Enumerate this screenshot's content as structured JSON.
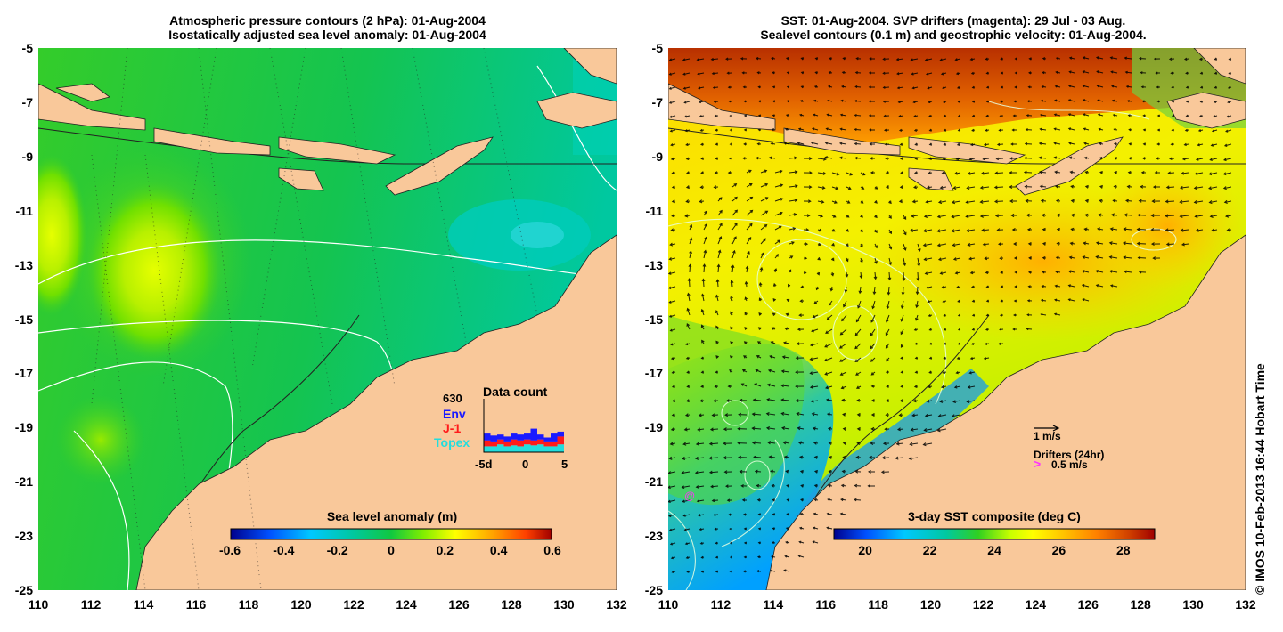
{
  "left": {
    "title1": "Atmospheric pressure contours (2 hPa): 01-Aug-2004",
    "title2": "Isostatically adjusted sea level anomaly: 01-Aug-2004",
    "y_ticks": [
      "-5",
      "-7",
      "-9",
      "-11",
      "-13",
      "-15",
      "-17",
      "-19",
      "-21",
      "-23",
      "-25"
    ],
    "x_ticks": [
      "110",
      "112",
      "114",
      "116",
      "118",
      "120",
      "122",
      "124",
      "126",
      "128",
      "130",
      "132"
    ],
    "colorbar": {
      "title": "Sea level anomaly (m)",
      "ticks": [
        "-0.6",
        "-0.4",
        "-0.2",
        "0",
        "0.2",
        "0.4",
        "0.6"
      ]
    },
    "inset": {
      "title": "Data count",
      "count": "630",
      "legend": [
        {
          "label": "Env",
          "color": "#1a1aff"
        },
        {
          "label": "J-1",
          "color": "#ff1a1a"
        },
        {
          "label": "Topex",
          "color": "#22dddd"
        }
      ],
      "x_ticks": [
        "-5d",
        "0",
        "5"
      ],
      "bars": [
        {
          "topex": 0.3,
          "j1": 0.3,
          "env": 0.35
        },
        {
          "topex": 0.3,
          "j1": 0.25,
          "env": 0.3
        },
        {
          "topex": 0.4,
          "j1": 0.25,
          "env": 0.25
        },
        {
          "topex": 0.3,
          "j1": 0.25,
          "env": 0.25
        },
        {
          "topex": 0.35,
          "j1": 0.3,
          "env": 0.3
        },
        {
          "topex": 0.3,
          "j1": 0.3,
          "env": 0.3
        },
        {
          "topex": 0.4,
          "j1": 0.25,
          "env": 0.3
        },
        {
          "topex": 0.35,
          "j1": 0.25,
          "env": 0.6
        },
        {
          "topex": 0.4,
          "j1": 0.25,
          "env": 0.25
        },
        {
          "topex": 0.3,
          "j1": 0.25,
          "env": 0.2
        },
        {
          "topex": 0.3,
          "j1": 0.25,
          "env": 0.4
        },
        {
          "topex": 0.4,
          "j1": 0.4,
          "env": 0.25
        }
      ]
    }
  },
  "right": {
    "title1": "SST: 01-Aug-2004. SVP drifters (magenta): 29 Jul - 03 Aug.",
    "title2": "Sealevel contours (0.1 m) and geostrophic velocity: 01-Aug-2004.",
    "y_ticks": [
      "-5",
      "-7",
      "-9",
      "-11",
      "-13",
      "-15",
      "-17",
      "-19",
      "-21",
      "-23",
      "-25"
    ],
    "x_ticks": [
      "110",
      "112",
      "114",
      "116",
      "118",
      "120",
      "122",
      "124",
      "126",
      "128",
      "130",
      "132"
    ],
    "colorbar": {
      "title": "3-day SST composite (deg C)",
      "ticks": [
        "20",
        "22",
        "24",
        "26",
        "28"
      ]
    },
    "legend": {
      "velocity": "1 m/s",
      "drifters": "Drifters (24hr)",
      "drifter_speed": "0.5 m/s",
      "drifter_color": "#ff33ff"
    }
  },
  "credit": "© IMOS 10-Feb-2013 16:44 Hobart Time",
  "colors": {
    "land": "#f9c89a",
    "sla_scale": [
      "#00008c",
      "#0050ff",
      "#00c8ff",
      "#00c8a0",
      "#10c840",
      "#80ee00",
      "#ffff00",
      "#ffa000",
      "#ff4000",
      "#a00000"
    ],
    "sst_scale": [
      "#00008c",
      "#0050ff",
      "#00c8ff",
      "#00c8a0",
      "#30d020",
      "#c8ff00",
      "#ffff00",
      "#ffc000",
      "#ff8000",
      "#d04000",
      "#a00000"
    ]
  }
}
